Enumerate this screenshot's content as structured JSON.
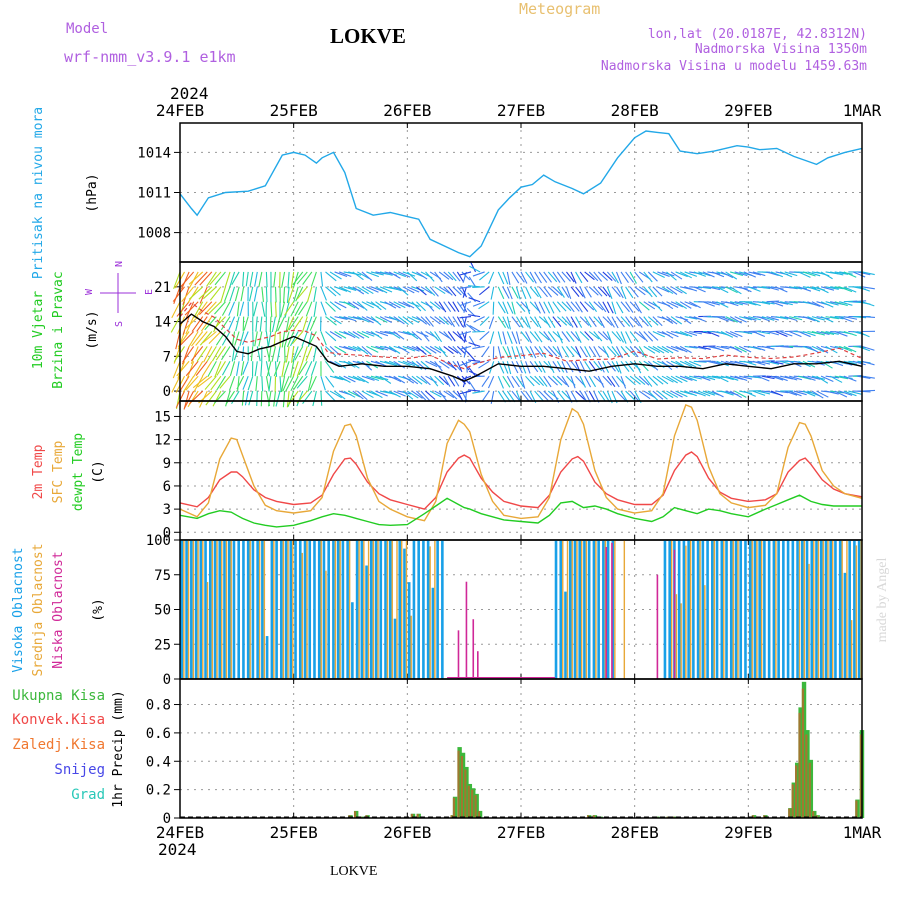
{
  "header": {
    "model_label": "Model",
    "model_name": "wrf-nmm_v3.9.1  e1km",
    "station": "LOKVE",
    "product": "Meteogram",
    "lonlat": "lon,lat (20.0187E, 42.8312N)",
    "elevation": "Nadmorska Visina 1350m",
    "model_elevation": "Nadmorska Visina u modelu 1459.63m",
    "watermark": "made by Angel",
    "footer_station": "LOKVE"
  },
  "time_axis": {
    "year": "2024",
    "labels": [
      "24FEB",
      "25FEB",
      "26FEB",
      "27FEB",
      "28FEB",
      "29FEB",
      "1MAR"
    ]
  },
  "colors": {
    "pressure": "#22a8e8",
    "temp2m": "#f04848",
    "sfc_temp": "#e8a838",
    "dewpt": "#22cc22",
    "cloud_high": "#18a0e8",
    "cloud_mid": "#e8a838",
    "cloud_low": "#d02898",
    "precip_total": "#3cb83c",
    "precip_conv": "#f04848",
    "precip_frozen": "#f07830",
    "precip_snow": "#4848e8",
    "precip_grad": "#28c8b8",
    "wind_speed_line": "#000000",
    "wind_legend": "#9b30d8"
  },
  "chart_data": [
    {
      "id": "pressure",
      "type": "line",
      "ylabel_title": "Pritisak na nivou mora",
      "ylabel_unit": "(hPa)",
      "yticks": [
        "1008",
        "1011",
        "1014"
      ],
      "ylim": [
        1005.8,
        1016.2
      ],
      "x_days": [
        0,
        0.1,
        0.15,
        0.25,
        0.4,
        0.6,
        0.75,
        0.9,
        1.0,
        1.1,
        1.2,
        1.25,
        1.35,
        1.45,
        1.55,
        1.7,
        1.85,
        2.0,
        2.1,
        2.2,
        2.35,
        2.45,
        2.55,
        2.65,
        2.8,
        2.9,
        3.0,
        3.1,
        3.2,
        3.3,
        3.45,
        3.55,
        3.7,
        3.85,
        4.0,
        4.1,
        4.2,
        4.3,
        4.4,
        4.55,
        4.7,
        4.9,
        5.0,
        5.1,
        5.25,
        5.4,
        5.5,
        5.6,
        5.7,
        5.85,
        6.0
      ],
      "y": [
        1010.9,
        1009.8,
        1009.3,
        1010.6,
        1011.0,
        1011.1,
        1011.5,
        1013.8,
        1014.0,
        1013.8,
        1013.2,
        1013.6,
        1014.0,
        1012.5,
        1009.8,
        1009.3,
        1009.5,
        1009.2,
        1009.0,
        1007.5,
        1006.9,
        1006.5,
        1006.2,
        1007.0,
        1009.7,
        1010.6,
        1011.4,
        1011.6,
        1012.3,
        1011.8,
        1011.3,
        1010.9,
        1011.7,
        1013.6,
        1015.1,
        1015.6,
        1015.5,
        1015.4,
        1014.1,
        1013.9,
        1014.1,
        1014.5,
        1014.4,
        1014.2,
        1014.3,
        1013.7,
        1013.4,
        1013.1,
        1013.6,
        1014.0,
        1014.3
      ]
    },
    {
      "id": "wind",
      "type": "barbs+line",
      "ylabel_title_1": "10m Vjetar",
      "ylabel_title_2": "Brzina i Pravac",
      "ylabel_unit": "(m/s)",
      "legend": {
        "n": "N",
        "s": "S",
        "e": "E",
        "w": "W"
      },
      "yticks": [
        "0",
        "7",
        "14",
        "21"
      ],
      "ylim": [
        -2,
        26
      ],
      "x_days": [
        0,
        0.1,
        0.2,
        0.3,
        0.4,
        0.5,
        0.6,
        0.7,
        0.8,
        0.9,
        1.0,
        1.1,
        1.2,
        1.3,
        1.4,
        1.6,
        1.8,
        2.0,
        2.2,
        2.4,
        2.5,
        2.6,
        2.8,
        3.0,
        3.2,
        3.4,
        3.6,
        3.8,
        4.0,
        4.2,
        4.4,
        4.6,
        4.8,
        5.0,
        5.2,
        5.4,
        5.6,
        5.8,
        6.0
      ],
      "speed": [
        13.5,
        15.5,
        14.0,
        13.0,
        11.0,
        8.0,
        7.5,
        8.5,
        9.0,
        10.0,
        11.0,
        10.0,
        9.0,
        6.0,
        5.0,
        5.5,
        5.0,
        5.0,
        4.5,
        3.0,
        2.0,
        3.0,
        5.5,
        5.0,
        5.0,
        4.5,
        4.0,
        5.0,
        5.5,
        5.0,
        5.0,
        4.5,
        5.5,
        5.0,
        4.5,
        5.5,
        5.5,
        6.0,
        5.0
      ],
      "direction_deg": [
        200,
        210,
        215,
        220,
        210,
        200,
        190,
        180,
        180,
        190,
        200,
        210,
        200,
        120,
        110,
        120,
        110,
        120,
        130,
        140,
        150,
        320,
        160,
        150,
        140,
        150,
        140,
        150,
        140,
        120,
        110,
        100,
        110,
        100,
        100,
        100,
        110,
        100,
        100
      ]
    },
    {
      "id": "temperature",
      "type": "line",
      "ylabel_series": [
        "2m Temp",
        "SFC Temp",
        "dewpt Temp"
      ],
      "ylabel_unit": "(C)",
      "yticks": [
        "0",
        "3",
        "6",
        "9",
        "12",
        "15"
      ],
      "ylim": [
        -1,
        17
      ],
      "x_days": [
        0,
        0.15,
        0.25,
        0.35,
        0.45,
        0.5,
        0.55,
        0.65,
        0.75,
        0.85,
        1.0,
        1.15,
        1.25,
        1.35,
        1.45,
        1.5,
        1.55,
        1.65,
        1.75,
        1.85,
        2.0,
        2.15,
        2.25,
        2.35,
        2.45,
        2.5,
        2.55,
        2.65,
        2.75,
        2.85,
        3.0,
        3.15,
        3.25,
        3.35,
        3.45,
        3.5,
        3.55,
        3.65,
        3.75,
        3.85,
        4.0,
        4.15,
        4.25,
        4.35,
        4.45,
        4.5,
        4.55,
        4.65,
        4.75,
        4.85,
        5.0,
        5.15,
        5.25,
        5.35,
        5.45,
        5.5,
        5.55,
        5.65,
        5.75,
        5.85,
        6.0
      ],
      "series": [
        {
          "name": "2m Temp",
          "y": [
            3.8,
            3.3,
            4.5,
            6.8,
            7.8,
            7.8,
            7.2,
            5.5,
            4.5,
            4.0,
            3.6,
            3.8,
            4.8,
            7.5,
            9.5,
            9.6,
            8.8,
            6.5,
            5.0,
            4.2,
            3.6,
            3.0,
            4.5,
            7.8,
            9.6,
            10.0,
            9.6,
            7.0,
            5.2,
            4.0,
            3.4,
            3.2,
            4.8,
            7.8,
            9.5,
            9.8,
            9.2,
            6.5,
            5.0,
            4.2,
            3.6,
            3.6,
            4.8,
            8.0,
            10.0,
            10.4,
            9.8,
            7.0,
            5.2,
            4.4,
            4.0,
            4.2,
            5.0,
            7.8,
            9.3,
            9.6,
            8.8,
            6.8,
            5.6,
            5.0,
            4.6
          ]
        },
        {
          "name": "SFC Temp",
          "y": [
            3.0,
            2.0,
            3.8,
            9.5,
            12.2,
            12.0,
            10.0,
            6.0,
            3.5,
            2.8,
            2.5,
            2.8,
            4.5,
            10.5,
            13.8,
            14.0,
            12.5,
            7.0,
            4.0,
            3.0,
            2.0,
            1.5,
            4.0,
            11.5,
            14.5,
            14.0,
            13.0,
            7.5,
            4.0,
            2.2,
            1.8,
            2.0,
            4.5,
            12.0,
            16.0,
            15.5,
            14.0,
            8.0,
            4.5,
            3.0,
            2.5,
            2.8,
            5.0,
            12.5,
            16.5,
            16.2,
            14.5,
            8.5,
            5.0,
            3.8,
            3.2,
            3.5,
            5.0,
            11.0,
            14.2,
            14.0,
            12.5,
            8.0,
            6.0,
            5.0,
            4.4
          ]
        },
        {
          "name": "dewpt Temp",
          "y": [
            2.2,
            1.8,
            2.4,
            2.8,
            2.6,
            2.2,
            1.8,
            1.2,
            0.9,
            0.7,
            0.9,
            1.5,
            2.0,
            2.4,
            2.2,
            2.0,
            1.8,
            1.4,
            1.0,
            0.9,
            1.0,
            2.4,
            3.4,
            4.4,
            3.6,
            3.2,
            3.0,
            2.4,
            2.0,
            1.6,
            1.4,
            1.2,
            2.2,
            3.8,
            4.0,
            3.6,
            3.2,
            3.4,
            3.0,
            2.4,
            1.8,
            1.4,
            2.0,
            3.2,
            2.8,
            2.6,
            2.4,
            3.0,
            2.8,
            2.4,
            2.0,
            3.0,
            3.6,
            4.2,
            4.8,
            4.4,
            4.0,
            3.6,
            3.4,
            3.4,
            3.4
          ]
        }
      ]
    },
    {
      "id": "cloud",
      "type": "bar",
      "ylabel_series": [
        "Visoka Oblacnost",
        "Srednja Oblacnost",
        "Niska Oblacnost"
      ],
      "ylabel_unit": "(%)",
      "yticks": [
        "0",
        "25",
        "50",
        "75",
        "100"
      ],
      "ylim": [
        0,
        100
      ],
      "high_on_ranges": [
        [
          0.02,
          2.35
        ],
        [
          3.3,
          3.85
        ],
        [
          4.25,
          6.0
        ]
      ],
      "mid_on_ranges": [
        [
          0.02,
          2.3
        ],
        [
          3.35,
          3.9
        ],
        [
          4.3,
          6.0
        ]
      ],
      "low_events": [
        {
          "day": 2.52,
          "value": 70
        },
        {
          "day": 2.58,
          "value": 43
        },
        {
          "day": 2.62,
          "value": 20
        },
        {
          "day": 2.45,
          "value": 35
        },
        {
          "day": 3.75,
          "value": 95
        },
        {
          "day": 3.8,
          "value": 98
        },
        {
          "day": 4.2,
          "value": 75
        },
        {
          "day": 4.35,
          "value": 93
        }
      ]
    },
    {
      "id": "precip",
      "type": "bar",
      "ylabel_unit": "1hr Precip (mm)",
      "legend": [
        "Ukupna Kisa",
        "Konvek.Kisa",
        "Zaledj.Kisa",
        "Snijeg",
        "Grad"
      ],
      "yticks": [
        "0",
        "0.2",
        "0.4",
        "0.6",
        "0.8"
      ],
      "ylim": [
        0,
        0.98
      ],
      "x_days": [
        1.5,
        1.55,
        1.6,
        1.65,
        2.05,
        2.1,
        2.4,
        2.42,
        2.46,
        2.49,
        2.52,
        2.55,
        2.58,
        2.61,
        2.64,
        3.6,
        3.65,
        3.7,
        4.2,
        4.25,
        4.3,
        4.35,
        5.05,
        5.15,
        5.37,
        5.4,
        5.43,
        5.46,
        5.49,
        5.52,
        5.55,
        5.58,
        5.61,
        5.64,
        5.96,
        6.0
      ],
      "values": [
        0.02,
        0.05,
        0.01,
        0.02,
        0.03,
        0.03,
        0.02,
        0.15,
        0.5,
        0.46,
        0.36,
        0.24,
        0.21,
        0.17,
        0.05,
        0.02,
        0.02,
        0.01,
        0.01,
        0.01,
        0.01,
        0.01,
        0.02,
        0.02,
        0.07,
        0.25,
        0.39,
        0.78,
        0.96,
        0.62,
        0.41,
        0.05,
        0.02,
        0.01,
        0.13,
        0.62
      ]
    }
  ]
}
